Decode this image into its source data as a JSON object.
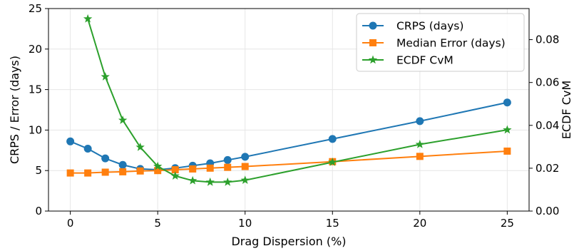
{
  "chart_data": {
    "type": "line",
    "xlabel": "Drag Dispersion (%)",
    "ylabel_left": "CRPS / Error (days)",
    "ylabel_right": "ECDF CvM",
    "xlim": [
      -1.25,
      26.25
    ],
    "ylim_left": [
      0,
      25
    ],
    "ylim_right": [
      0,
      0.0945
    ],
    "x_ticks": [
      0,
      5,
      10,
      15,
      20,
      25
    ],
    "x_tick_labels": [
      "0",
      "5",
      "10",
      "15",
      "20",
      "25"
    ],
    "y_left_ticks": [
      0,
      5,
      10,
      15,
      20,
      25
    ],
    "y_left_tick_labels": [
      "0",
      "5",
      "10",
      "15",
      "20",
      "25"
    ],
    "y_right_ticks": [
      0,
      0.02,
      0.04,
      0.06,
      0.08
    ],
    "y_right_tick_labels": [
      "0.00",
      "0.02",
      "0.04",
      "0.06",
      "0.08"
    ],
    "grid": true,
    "legend_position": "top-right",
    "series": [
      {
        "name": "CRPS (days)",
        "axis": "left",
        "color": "#1f77b4",
        "marker": "circle",
        "x": [
          0,
          1,
          2,
          3,
          4,
          5,
          6,
          7,
          8,
          9,
          10,
          15,
          20,
          25
        ],
        "values": [
          8.6,
          7.7,
          6.5,
          5.7,
          5.2,
          5.1,
          5.3,
          5.6,
          5.9,
          6.3,
          6.7,
          8.9,
          11.1,
          13.4
        ]
      },
      {
        "name": "Median Error (days)",
        "axis": "left",
        "color": "#ff7f0e",
        "marker": "square",
        "x": [
          0,
          1,
          2,
          3,
          4,
          5,
          6,
          7,
          8,
          9,
          10,
          15,
          20,
          25
        ],
        "values": [
          4.7,
          4.7,
          4.8,
          4.85,
          4.95,
          5.0,
          5.1,
          5.2,
          5.3,
          5.4,
          5.5,
          6.1,
          6.75,
          7.4
        ]
      },
      {
        "name": "ECDF CvM",
        "axis": "right",
        "color": "#2ca02c",
        "marker": "star",
        "x": [
          1,
          2,
          3,
          4,
          5,
          6,
          7,
          8,
          9,
          10,
          15,
          20,
          25
        ],
        "values": [
          0.0897,
          0.0627,
          0.0424,
          0.0298,
          0.0209,
          0.0164,
          0.0142,
          0.0135,
          0.0135,
          0.0144,
          0.0228,
          0.0311,
          0.0379
        ]
      }
    ]
  }
}
